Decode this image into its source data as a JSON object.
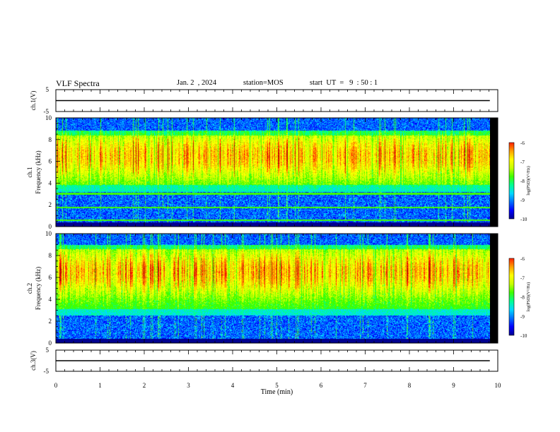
{
  "header": {
    "title": "VLF Spectra",
    "date": "Jan. 2  , 2024",
    "station": "station=MOS",
    "start": "start  UT  =   9  : 50 : 1"
  },
  "chart_data": [
    {
      "type": "line",
      "panel": "ch1-voltage",
      "ylabel": "ch.1(V)",
      "ylim": [
        -5,
        5
      ],
      "ytick_labels": [
        "5",
        "-5"
      ],
      "xlim": [
        0,
        10
      ],
      "series": [
        {
          "x": [
            0,
            9.82
          ],
          "values": [
            0,
            0
          ]
        }
      ]
    },
    {
      "type": "heatmap",
      "panel": "ch1-spectrogram",
      "ylabel": "ch.1\nFrequency (kHz)",
      "ylim": [
        0,
        10
      ],
      "ytick_labels": [
        "0",
        "2",
        "4",
        "6",
        "8",
        "10"
      ],
      "xlim": [
        0,
        10
      ],
      "data_extent_min": 9.82,
      "band_kHz": [
        3.2,
        8.8
      ],
      "peak_kHz": 6.5,
      "colorbar": {
        "label": "log(PSD)(V²/Hz)",
        "range": [
          -10,
          -6
        ],
        "tick_labels": [
          "-6",
          "-7",
          "-8",
          "-9",
          "-10"
        ]
      }
    },
    {
      "type": "heatmap",
      "panel": "ch2-spectrogram",
      "ylabel": "ch.2\nFrequency (kHz)",
      "ylim": [
        0,
        10
      ],
      "ytick_labels": [
        "0",
        "2",
        "4",
        "6",
        "8",
        "10"
      ],
      "xlim": [
        0,
        10
      ],
      "data_extent_min": 9.82,
      "band_kHz": [
        2.5,
        9.0
      ],
      "peak_kHz": 6.5,
      "colorbar": {
        "label": "log(PSD)(V²/Hz)",
        "range": [
          -10,
          -6
        ],
        "tick_labels": [
          "-6",
          "-7",
          "-8",
          "-9",
          "-10"
        ]
      }
    },
    {
      "type": "line",
      "panel": "ch3-voltage",
      "ylabel": "ch.3(V)",
      "ylim": [
        -5,
        5
      ],
      "ytick_labels": [
        "5",
        "-5"
      ],
      "xlim": [
        0,
        10
      ],
      "xlabel": "Time  (min)",
      "xtick_labels": [
        "0",
        "1",
        "2",
        "3",
        "4",
        "5",
        "6",
        "7",
        "8",
        "9",
        "10"
      ],
      "series": [
        {
          "x": [
            0,
            9.82
          ],
          "values": [
            0,
            0
          ]
        }
      ]
    }
  ],
  "colormap": [
    "#000090",
    "#0000ff",
    "#0070ff",
    "#00d8ff",
    "#00ff90",
    "#40ff00",
    "#c8ff00",
    "#ffff00",
    "#ffa000",
    "#ff2000",
    "#c00000",
    "#ffffff"
  ]
}
